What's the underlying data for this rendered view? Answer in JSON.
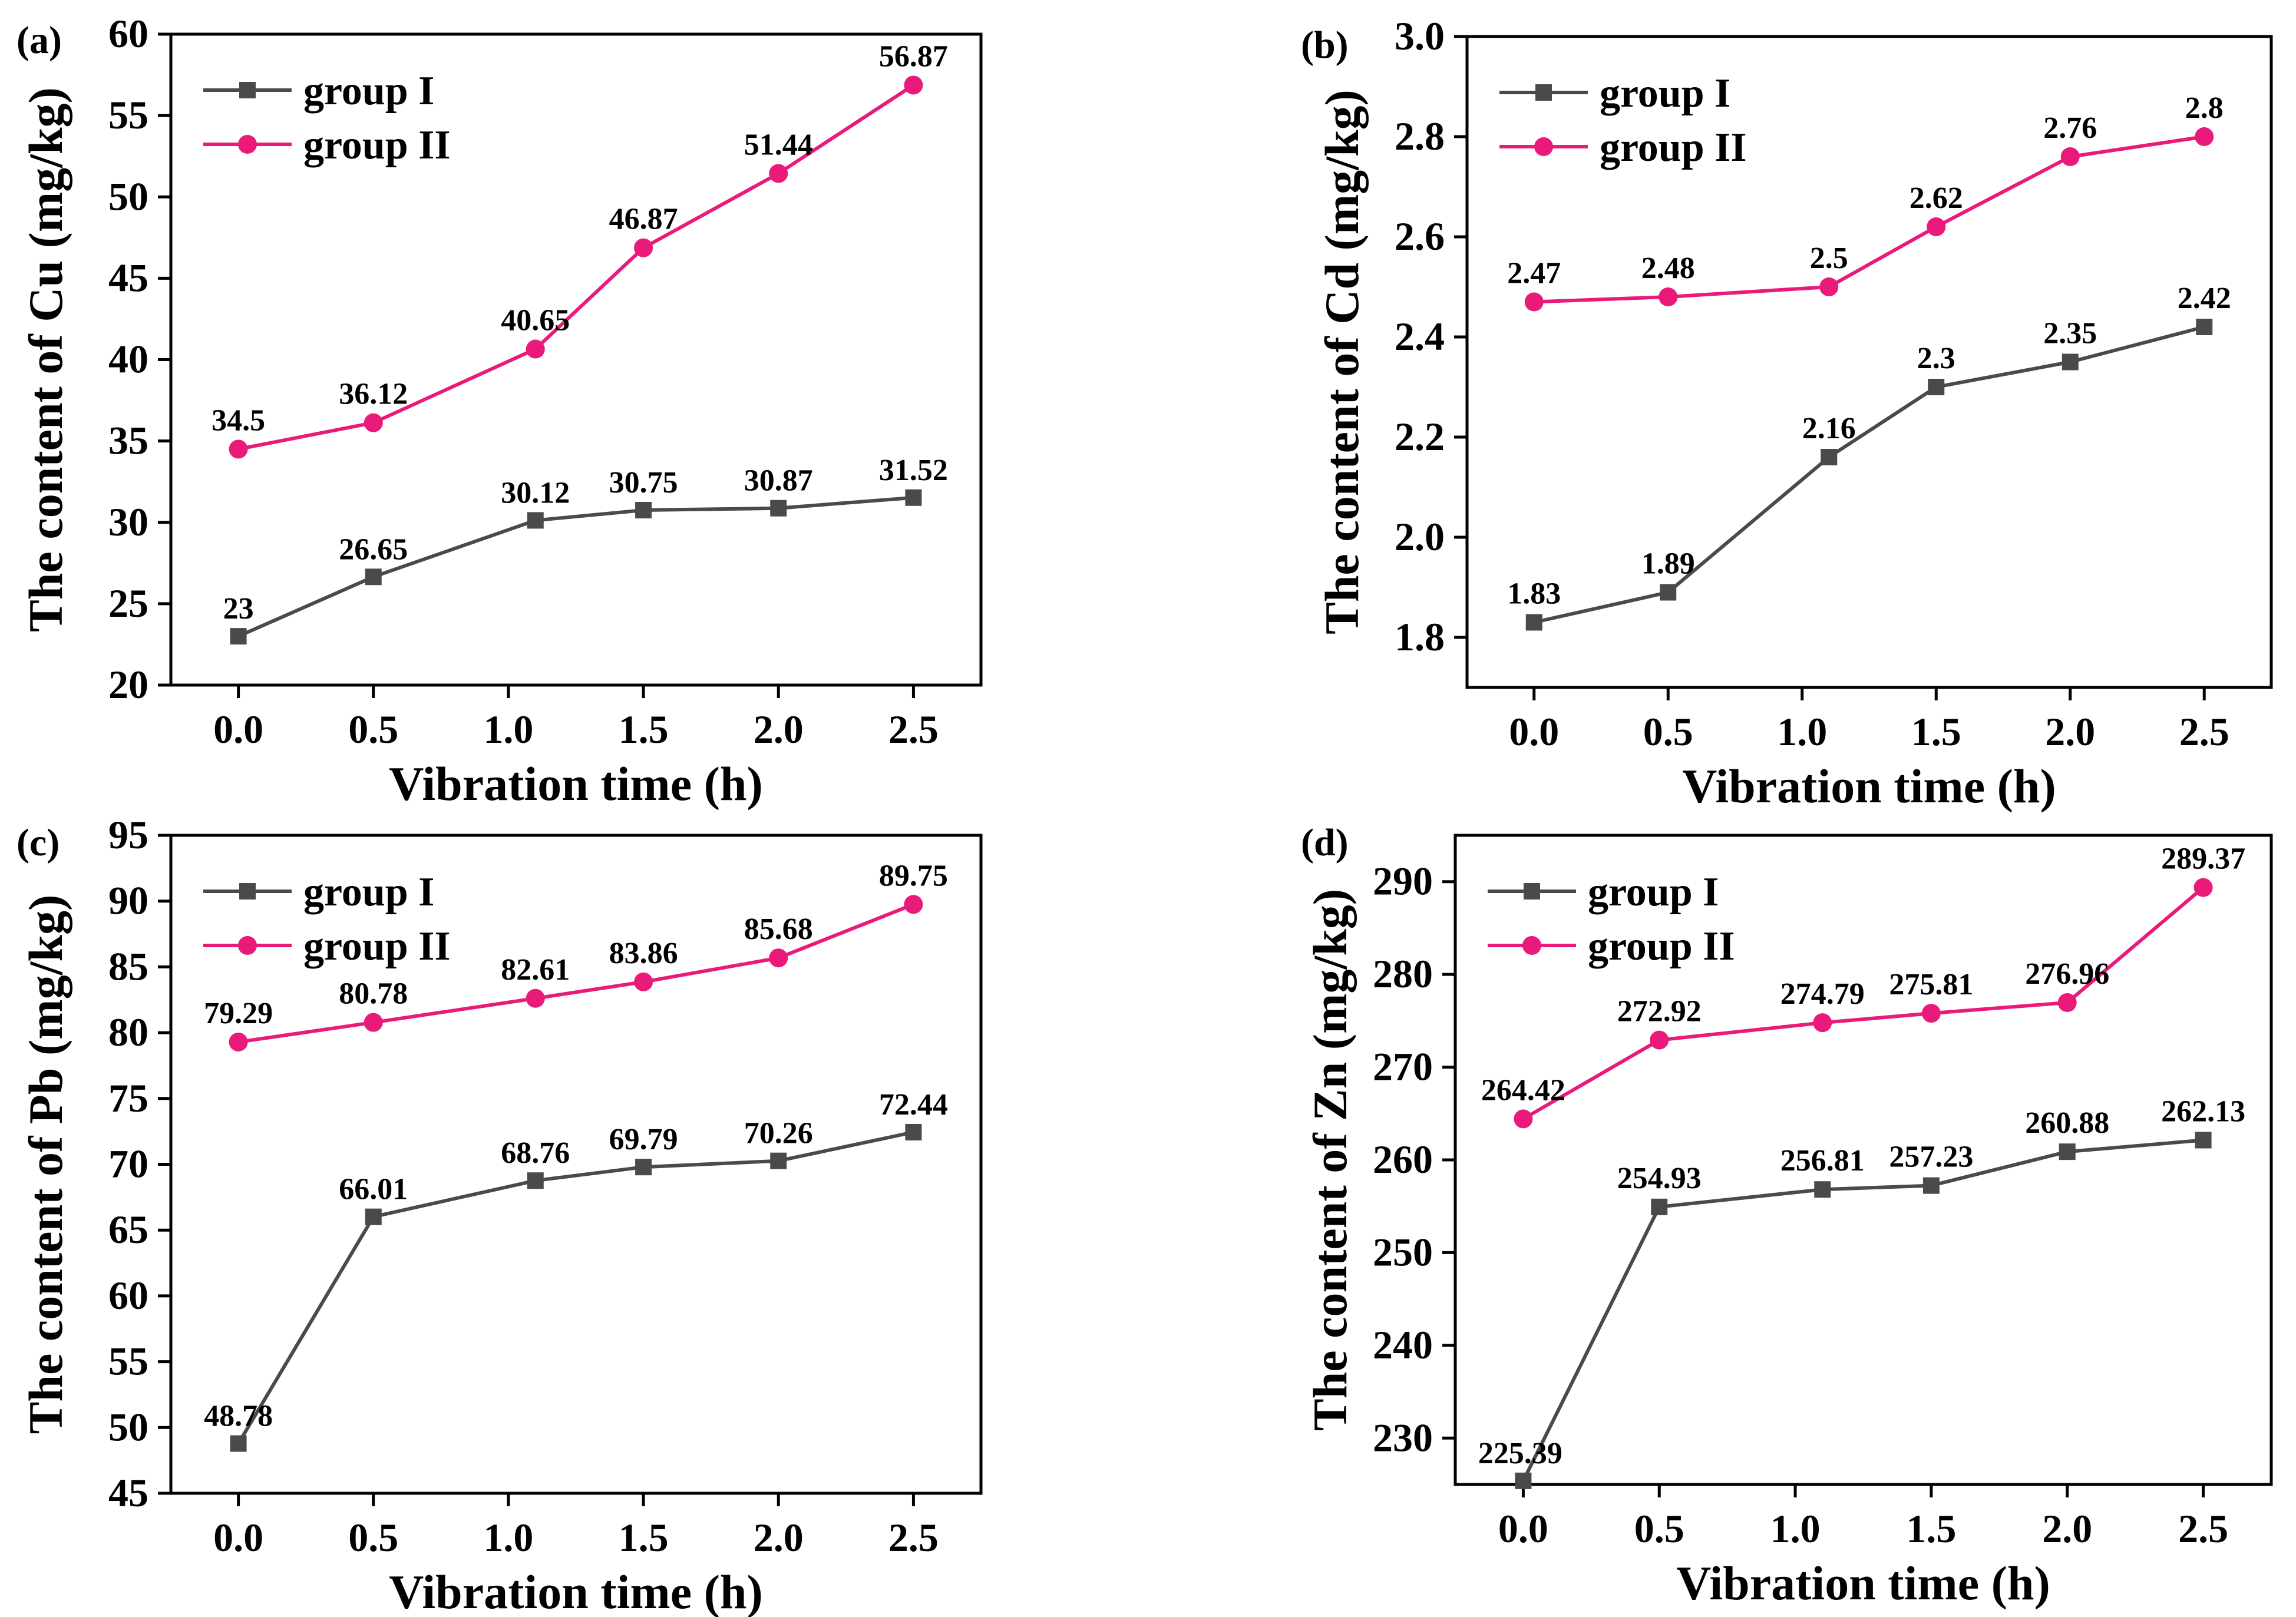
{
  "colors": {
    "group1": "#4a4a4a",
    "group2": "#ea1a7a"
  },
  "chart_data": [
    {
      "type": "line",
      "panel": "(a)",
      "x": [
        0.0,
        0.5,
        1.1,
        1.5,
        2.0,
        2.5
      ],
      "xlabel": "Vibration time (h)",
      "ylabel": "The content of Cu (mg/kg)",
      "xlim": [
        -0.25,
        2.75
      ],
      "ylim": [
        20,
        60
      ],
      "xticks": [
        0.0,
        0.5,
        1.0,
        1.5,
        2.0,
        2.5
      ],
      "xtick_labels": [
        "0.0",
        "0.5",
        "1.0",
        "1.5",
        "2.0",
        "2.5"
      ],
      "yticks": [
        20,
        25,
        30,
        35,
        40,
        45,
        50,
        55,
        60
      ],
      "ytick_labels": [
        "20",
        "25",
        "30",
        "35",
        "40",
        "45",
        "50",
        "55",
        "60"
      ],
      "legend": {
        "position": "top-left",
        "entries": [
          "group I",
          "group II"
        ]
      },
      "series": [
        {
          "name": "group I",
          "marker": "square",
          "values": [
            23,
            26.65,
            30.12,
            30.75,
            30.87,
            31.52
          ],
          "labels": [
            "23",
            "26.65",
            "30.12",
            "30.75",
            "30.87",
            "31.52"
          ]
        },
        {
          "name": "group II",
          "marker": "circle",
          "values": [
            34.5,
            36.12,
            40.65,
            46.87,
            51.44,
            56.87
          ],
          "labels": [
            "34.5",
            "36.12",
            "40.65",
            "46.87",
            "51.44",
            "56.87"
          ]
        }
      ]
    },
    {
      "type": "line",
      "panel": "(b)",
      "x": [
        0.0,
        0.5,
        1.1,
        1.5,
        2.0,
        2.5
      ],
      "xlabel": "Vibration time (h)",
      "ylabel": "The content of Cd (mg/kg)",
      "xlim": [
        -0.25,
        2.75
      ],
      "ylim": [
        1.7,
        3.0
      ],
      "xticks": [
        0.0,
        0.5,
        1.0,
        1.5,
        2.0,
        2.5
      ],
      "xtick_labels": [
        "0.0",
        "0.5",
        "1.0",
        "1.5",
        "2.0",
        "2.5"
      ],
      "yticks": [
        1.8,
        2.0,
        2.2,
        2.4,
        2.6,
        2.8,
        3.0
      ],
      "ytick_labels": [
        "1.8",
        "2.0",
        "2.2",
        "2.4",
        "2.6",
        "2.8",
        "3.0"
      ],
      "legend": {
        "position": "top-left",
        "entries": [
          "group I",
          "group II"
        ]
      },
      "series": [
        {
          "name": "group I",
          "marker": "square",
          "values": [
            1.83,
            1.89,
            2.16,
            2.3,
            2.35,
            2.42
          ],
          "labels": [
            "1.83",
            "1.89",
            "2.16",
            "2.3",
            "2.35",
            "2.42"
          ]
        },
        {
          "name": "group II",
          "marker": "circle",
          "values": [
            2.47,
            2.48,
            2.5,
            2.62,
            2.76,
            2.8
          ],
          "labels": [
            "2.47",
            "2.48",
            "2.5",
            "2.62",
            "2.76",
            "2.8"
          ]
        }
      ]
    },
    {
      "type": "line",
      "panel": "(c)",
      "x": [
        0.0,
        0.5,
        1.1,
        1.5,
        2.0,
        2.5
      ],
      "xlabel": "Vibration time (h)",
      "ylabel": "The content of Pb (mg/kg)",
      "xlim": [
        -0.25,
        2.75
      ],
      "ylim": [
        45,
        95
      ],
      "xticks": [
        0.0,
        0.5,
        1.0,
        1.5,
        2.0,
        2.5
      ],
      "xtick_labels": [
        "0.0",
        "0.5",
        "1.0",
        "1.5",
        "2.0",
        "2.5"
      ],
      "yticks": [
        45,
        50,
        55,
        60,
        65,
        70,
        75,
        80,
        85,
        90,
        95
      ],
      "ytick_labels": [
        "45",
        "50",
        "55",
        "60",
        "65",
        "70",
        "75",
        "80",
        "85",
        "90",
        "95"
      ],
      "legend": {
        "position": "top-left",
        "entries": [
          "group I",
          "group II"
        ]
      },
      "series": [
        {
          "name": "group I",
          "marker": "square",
          "values": [
            48.78,
            66.01,
            68.76,
            69.79,
            70.26,
            72.44
          ],
          "labels": [
            "48.78",
            "66.01",
            "68.76",
            "69.79",
            "70.26",
            "72.44"
          ]
        },
        {
          "name": "group II",
          "marker": "circle",
          "values": [
            79.29,
            80.78,
            82.61,
            83.86,
            85.68,
            89.75
          ],
          "labels": [
            "79.29",
            "80.78",
            "82.61",
            "83.86",
            "85.68",
            "89.75"
          ]
        }
      ]
    },
    {
      "type": "line",
      "panel": "(d)",
      "x": [
        0.0,
        0.5,
        1.1,
        1.5,
        2.0,
        2.5
      ],
      "xlabel": "Vibration time (h)",
      "ylabel": "The content of Zn (mg/kg)",
      "xlim": [
        -0.25,
        2.75
      ],
      "ylim": [
        225,
        295
      ],
      "xticks": [
        0.0,
        0.5,
        1.0,
        1.5,
        2.0,
        2.5
      ],
      "xtick_labels": [
        "0.0",
        "0.5",
        "1.0",
        "1.5",
        "2.0",
        "2.5"
      ],
      "yticks": [
        230,
        240,
        250,
        260,
        270,
        280,
        290
      ],
      "ytick_labels": [
        "230",
        "240",
        "250",
        "260",
        "270",
        "280",
        "290"
      ],
      "legend": {
        "position": "top-left",
        "entries": [
          "group I",
          "group II"
        ]
      },
      "series": [
        {
          "name": "group I",
          "marker": "square",
          "values": [
            225.39,
            254.93,
            256.81,
            257.23,
            260.88,
            262.13
          ],
          "labels": [
            "225.39",
            "254.93",
            "256.81",
            "257.23",
            "260.88",
            "262.13"
          ]
        },
        {
          "name": "group II",
          "marker": "circle",
          "values": [
            264.42,
            272.92,
            274.79,
            275.81,
            276.96,
            289.37
          ],
          "labels": [
            "264.42",
            "272.92",
            "274.79",
            "275.81",
            "276.96",
            "289.37"
          ]
        }
      ]
    }
  ]
}
